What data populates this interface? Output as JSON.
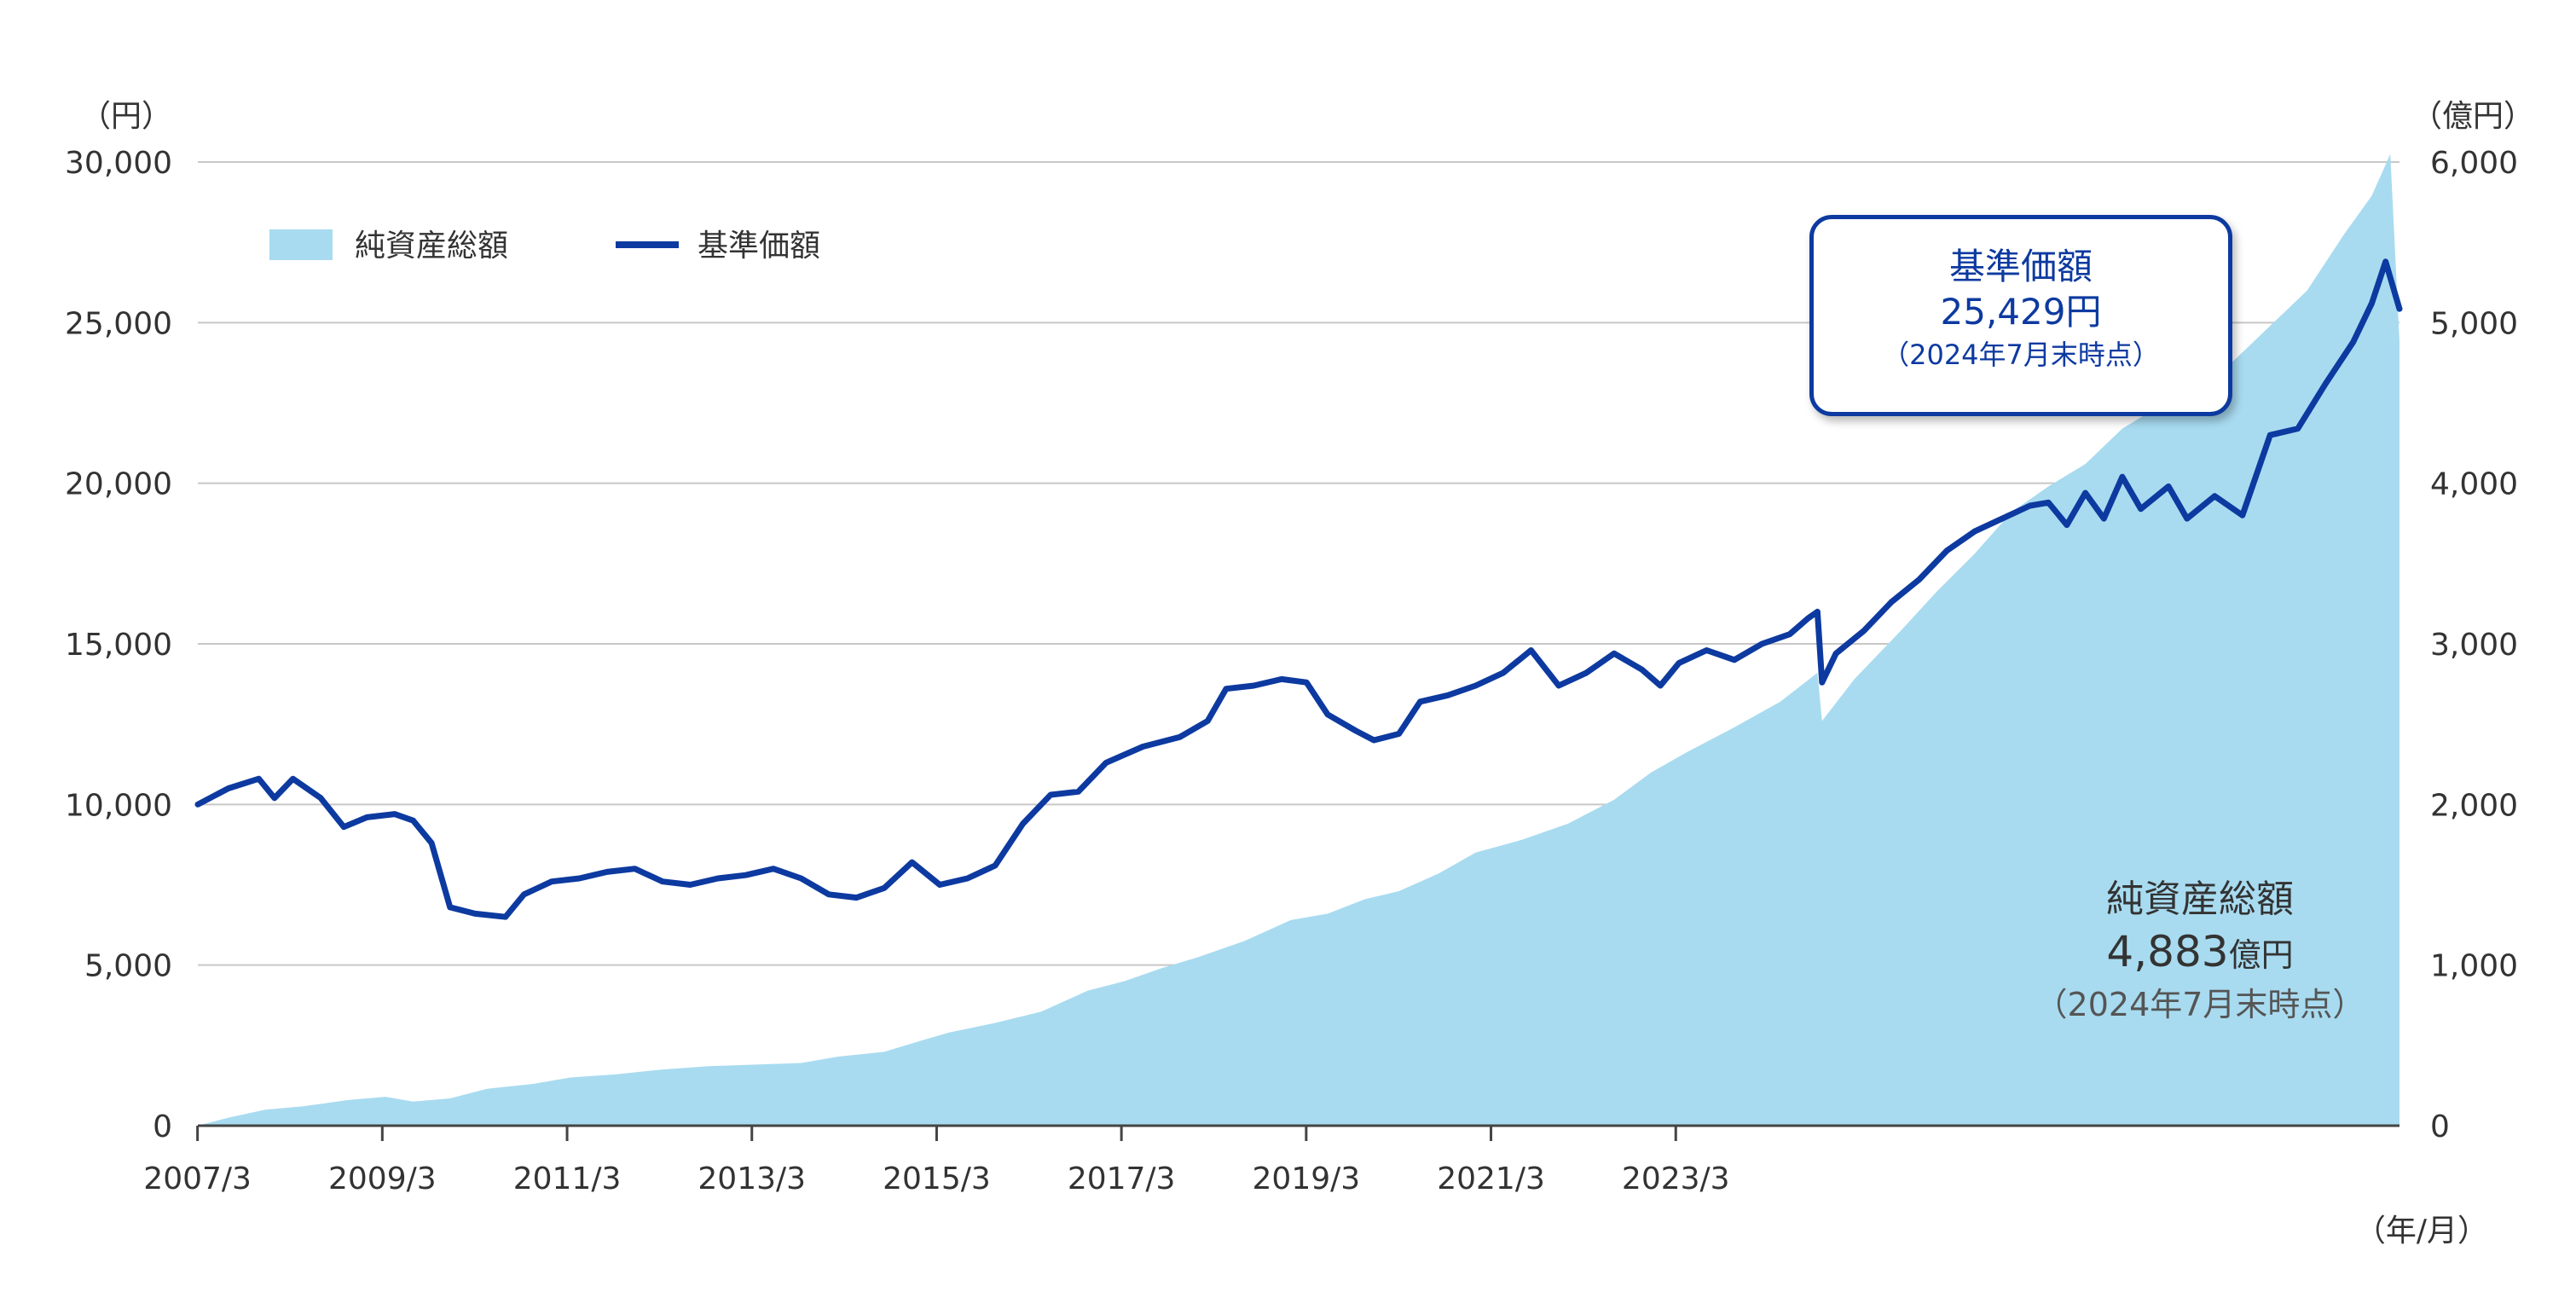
{
  "chart_data": {
    "type": "area+line",
    "legend": {
      "placement": "top-left",
      "items": [
        {
          "label": "純資産総額",
          "kind": "area",
          "color": "#a8dbf0"
        },
        {
          "label": "基準価額",
          "kind": "line",
          "color": "#0d3aa0"
        }
      ]
    },
    "left_axis": {
      "unit": "（円）",
      "range": [
        0,
        30000
      ],
      "ticks": [
        "0",
        "5,000",
        "10,000",
        "15,000",
        "20,000",
        "25,000",
        "30,000"
      ]
    },
    "right_axis": {
      "unit": "（億円）",
      "range": [
        0,
        6000
      ],
      "ticks": [
        "0",
        "1,000",
        "2,000",
        "3,000",
        "4,000",
        "5,000",
        "6,000"
      ]
    },
    "x_axis": {
      "unit": "（年/月）",
      "ticks": [
        "2007/3",
        "2009/3",
        "2011/3",
        "2013/3",
        "2015/3",
        "2017/3",
        "2019/3",
        "2021/3",
        "2023/3"
      ]
    },
    "grid": true,
    "series": [
      {
        "name": "基準価額",
        "axis": "left",
        "color": "#0d3aa0",
        "points": [
          [
            2007.17,
            10000
          ],
          [
            2007.5,
            10500
          ],
          [
            2007.83,
            10800
          ],
          [
            2008.0,
            10200
          ],
          [
            2008.2,
            10800
          ],
          [
            2008.5,
            10200
          ],
          [
            2008.75,
            9300
          ],
          [
            2009.0,
            9600
          ],
          [
            2009.3,
            9700
          ],
          [
            2009.5,
            9500
          ],
          [
            2009.7,
            8800
          ],
          [
            2009.9,
            6800
          ],
          [
            2010.17,
            6600
          ],
          [
            2010.5,
            6500
          ],
          [
            2010.7,
            7200
          ],
          [
            2011.0,
            7600
          ],
          [
            2011.3,
            7700
          ],
          [
            2011.6,
            7900
          ],
          [
            2011.9,
            8000
          ],
          [
            2012.2,
            7600
          ],
          [
            2012.5,
            7500
          ],
          [
            2012.8,
            7700
          ],
          [
            2013.1,
            7800
          ],
          [
            2013.4,
            8000
          ],
          [
            2013.7,
            7700
          ],
          [
            2014.0,
            7200
          ],
          [
            2014.3,
            7100
          ],
          [
            2014.6,
            7400
          ],
          [
            2014.9,
            8200
          ],
          [
            2015.2,
            7500
          ],
          [
            2015.5,
            7700
          ],
          [
            2015.8,
            8100
          ],
          [
            2016.1,
            9400
          ],
          [
            2016.4,
            10300
          ],
          [
            2016.7,
            10400
          ],
          [
            2017.0,
            11300
          ],
          [
            2017.4,
            11800
          ],
          [
            2017.8,
            12100
          ],
          [
            2018.1,
            12600
          ],
          [
            2018.3,
            13600
          ],
          [
            2018.6,
            13700
          ],
          [
            2018.9,
            13900
          ],
          [
            2019.17,
            13800
          ],
          [
            2019.4,
            12800
          ],
          [
            2019.7,
            12300
          ],
          [
            2019.9,
            12000
          ],
          [
            2020.17,
            12200
          ],
          [
            2020.4,
            13200
          ],
          [
            2020.7,
            13400
          ],
          [
            2021.0,
            13700
          ],
          [
            2021.3,
            14100
          ],
          [
            2021.6,
            14800
          ],
          [
            2021.9,
            13700
          ],
          [
            2022.2,
            14100
          ],
          [
            2022.5,
            14700
          ],
          [
            2022.8,
            14200
          ],
          [
            2023.0,
            13700
          ],
          [
            2023.2,
            14400
          ],
          [
            2023.5,
            14800
          ],
          [
            2023.8,
            14500
          ],
          [
            2024.1,
            15000
          ],
          [
            2024.4,
            15300
          ],
          [
            2024.6,
            15800
          ],
          [
            2024.7,
            16000
          ],
          [
            2024.75,
            13800
          ],
          [
            2024.9,
            14700
          ],
          [
            2025.2,
            15400
          ],
          [
            2025.5,
            16300
          ],
          [
            2025.8,
            17000
          ],
          [
            2026.1,
            17900
          ],
          [
            2026.4,
            18500
          ],
          [
            2026.7,
            18900
          ],
          [
            2027.0,
            19300
          ],
          [
            2027.2,
            19400
          ],
          [
            2027.4,
            18700
          ],
          [
            2027.6,
            19700
          ],
          [
            2027.8,
            18900
          ],
          [
            2028.0,
            20200
          ],
          [
            2028.2,
            19200
          ],
          [
            2028.5,
            19900
          ],
          [
            2028.7,
            18900
          ],
          [
            2029.0,
            19600
          ],
          [
            2029.3,
            19000
          ],
          [
            2029.6,
            21500
          ],
          [
            2029.9,
            21700
          ],
          [
            2030.2,
            23100
          ],
          [
            2030.5,
            24400
          ],
          [
            2030.7,
            25600
          ],
          [
            2030.85,
            26900
          ],
          [
            2031.0,
            25429
          ]
        ]
      },
      {
        "name": "純資産総額",
        "axis": "right",
        "color": "#a8dbf0",
        "points": [
          [
            2007.17,
            0
          ],
          [
            2007.5,
            50
          ],
          [
            2007.9,
            100
          ],
          [
            2008.3,
            120
          ],
          [
            2008.8,
            160
          ],
          [
            2009.2,
            180
          ],
          [
            2009.5,
            150
          ],
          [
            2009.9,
            170
          ],
          [
            2010.3,
            230
          ],
          [
            2010.8,
            260
          ],
          [
            2011.2,
            300
          ],
          [
            2011.7,
            320
          ],
          [
            2012.2,
            350
          ],
          [
            2012.7,
            370
          ],
          [
            2013.2,
            380
          ],
          [
            2013.7,
            390
          ],
          [
            2014.1,
            430
          ],
          [
            2014.6,
            460
          ],
          [
            2015.0,
            530
          ],
          [
            2015.3,
            580
          ],
          [
            2015.8,
            640
          ],
          [
            2016.3,
            710
          ],
          [
            2016.8,
            840
          ],
          [
            2017.2,
            900
          ],
          [
            2017.6,
            980
          ],
          [
            2018.0,
            1050
          ],
          [
            2018.5,
            1150
          ],
          [
            2019.0,
            1280
          ],
          [
            2019.4,
            1320
          ],
          [
            2019.8,
            1410
          ],
          [
            2020.17,
            1460
          ],
          [
            2020.6,
            1570
          ],
          [
            2021.0,
            1700
          ],
          [
            2021.5,
            1780
          ],
          [
            2022.0,
            1880
          ],
          [
            2022.5,
            2030
          ],
          [
            2022.9,
            2200
          ],
          [
            2023.3,
            2330
          ],
          [
            2023.8,
            2480
          ],
          [
            2024.3,
            2640
          ],
          [
            2024.7,
            2820
          ],
          [
            2024.75,
            2520
          ],
          [
            2025.1,
            2780
          ],
          [
            2025.6,
            3080
          ],
          [
            2026.0,
            3330
          ],
          [
            2026.4,
            3560
          ],
          [
            2026.8,
            3820
          ],
          [
            2027.2,
            3980
          ],
          [
            2027.6,
            4120
          ],
          [
            2028.0,
            4340
          ],
          [
            2028.4,
            4480
          ],
          [
            2028.8,
            4580
          ],
          [
            2029.2,
            4760
          ],
          [
            2029.6,
            4980
          ],
          [
            2030.0,
            5200
          ],
          [
            2030.4,
            5550
          ],
          [
            2030.7,
            5790
          ],
          [
            2030.9,
            6050
          ],
          [
            2031.0,
            4883
          ]
        ]
      }
    ],
    "callouts": [
      {
        "series": "基準価額",
        "title": "基準価額",
        "value": "25,429円",
        "note": "（2024年7月末時点）"
      },
      {
        "series": "純資産総額",
        "title": "純資産総額",
        "value_number": "4,883",
        "value_unit": "億円",
        "note": "（2024年7月末時点）"
      }
    ]
  }
}
